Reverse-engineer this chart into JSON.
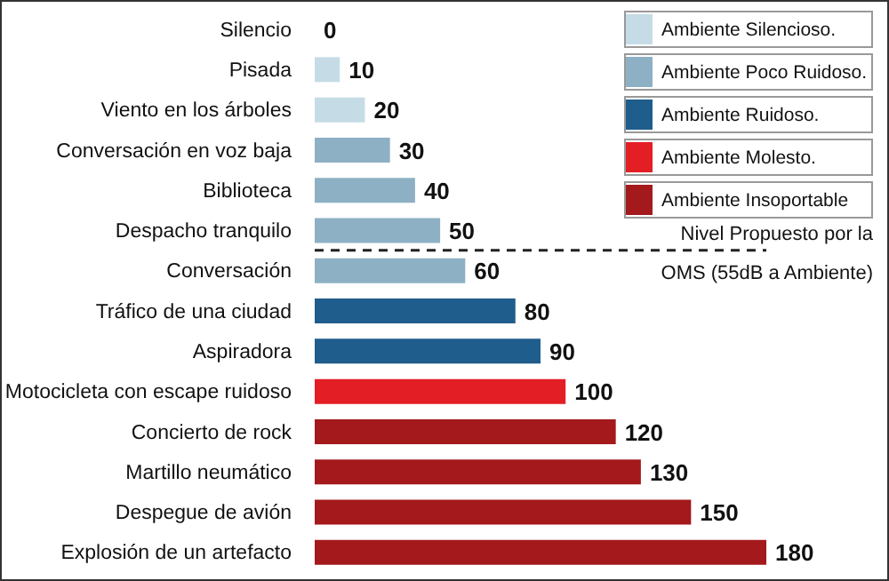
{
  "chart_data": {
    "type": "bar",
    "orientation": "horizontal",
    "stacked": true,
    "data_labels": true,
    "legend": "top right",
    "categories": [
      "Silencio",
      "Pisada",
      "Viento en los árboles",
      "Conversación en voz baja",
      "Biblioteca",
      "Despacho tranquilo",
      "Conversación",
      "Tráfico de una ciudad",
      "Aspiradora",
      "Motocicleta con escape ruidoso",
      "Concierto de rock",
      "Martillo neumático",
      "Despegue de avión",
      "Explosión de un artefacto"
    ],
    "series": [
      {
        "name": "Ambiente Silencioso.",
        "color": "#c5dce7",
        "values": [
          0,
          10,
          20,
          null,
          null,
          null,
          null,
          null,
          null,
          null,
          null,
          null,
          null,
          null
        ]
      },
      {
        "name": "Ambiente Poco Ruidoso.",
        "color": "#8db0c4",
        "values": [
          null,
          null,
          null,
          30,
          40,
          50,
          60,
          null,
          null,
          null,
          null,
          null,
          null,
          null
        ]
      },
      {
        "name": "Ambiente Ruidoso.",
        "color": "#1f5d8c",
        "values": [
          null,
          null,
          null,
          null,
          null,
          null,
          null,
          80,
          90,
          null,
          null,
          null,
          null,
          null
        ]
      },
      {
        "name": "Ambiente Molesto.",
        "color": "#e31e24",
        "values": [
          null,
          null,
          null,
          null,
          null,
          null,
          null,
          null,
          null,
          100,
          null,
          null,
          null,
          null
        ]
      },
      {
        "name": "Ambiente Insoportable",
        "color": "#a3191c",
        "values": [
          null,
          null,
          null,
          null,
          null,
          null,
          null,
          null,
          null,
          null,
          120,
          130,
          150,
          180
        ]
      }
    ],
    "annotations": [
      "Nivel Propuesto por la OMS (55dB a Ambiente)"
    ]
  }
}
